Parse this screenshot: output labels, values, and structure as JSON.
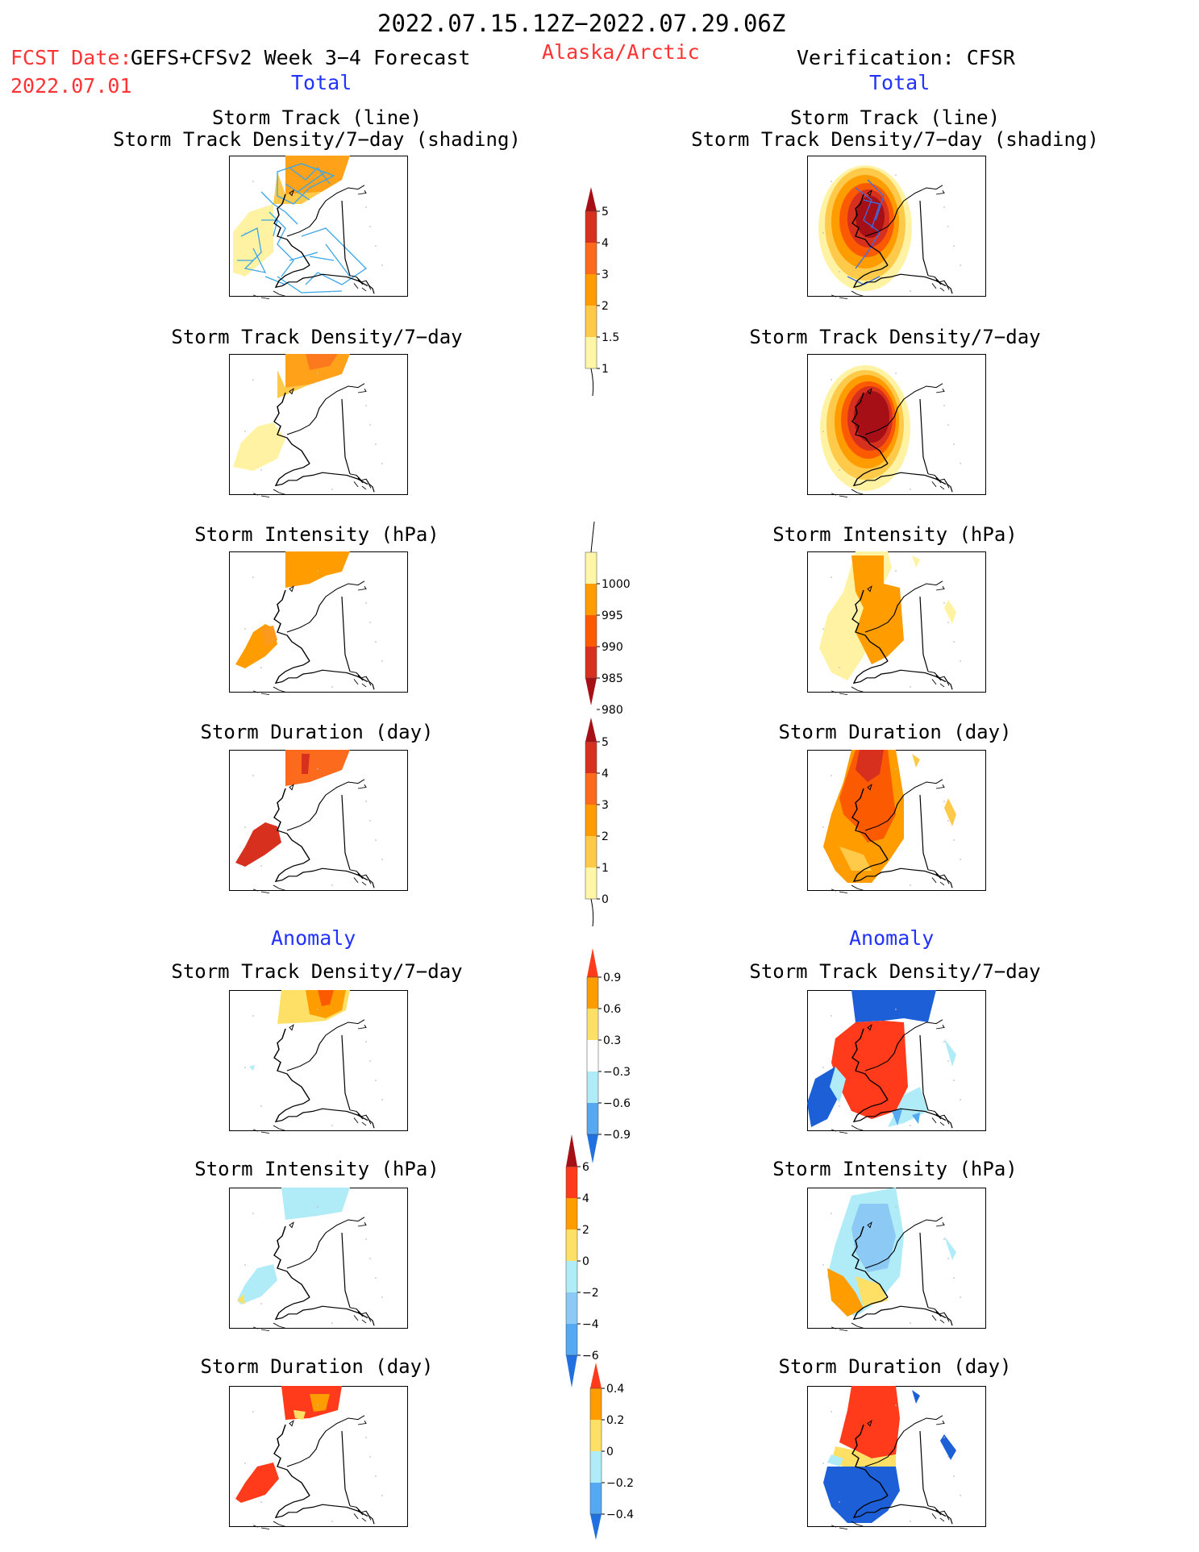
{
  "header": {
    "period": "2022.07.15.12Z−2022.07.29.06Z",
    "fcst_label": "FCST Date:",
    "fcst_model": "GEFS+CFSv2 Week 3−4 Forecast",
    "fcst_date": "2022.07.01",
    "region": "Alaska/Arctic",
    "verification": "Verification: CFSR"
  },
  "sections": {
    "left_total": "Total",
    "right_total": "Total",
    "left_anomaly": "Anomaly",
    "right_anomaly": "Anomaly"
  },
  "panels": {
    "left": {
      "p1_line1": "Storm Track (line)",
      "p1_line2": "Storm Track Density/7−day (shading)",
      "p2": "Storm Track Density/7−day",
      "p3": "Storm Intensity (hPa)",
      "p4": "Storm Duration (day)",
      "p5": "Storm Track Density/7−day",
      "p6": "Storm Intensity (hPa)",
      "p7": "Storm Duration (day)"
    },
    "right": {
      "p1_line1": "Storm Track (line)",
      "p1_line2": "Storm Track Density/7−day (shading)",
      "p2": "Storm Track Density/7−day",
      "p3": "Storm Intensity (hPa)",
      "p4": "Storm Duration (day)",
      "p5": "Storm Track Density/7−day",
      "p6": "Storm Intensity (hPa)",
      "p7": "Storm Duration (day)"
    }
  },
  "colorbars": [
    {
      "name": "density-total",
      "labels": [
        "5",
        "4",
        "3",
        "2",
        "1.5",
        "1"
      ],
      "colors": [
        "#a50f15",
        "#d7301f",
        "#fc6a1d",
        "#ff9c00",
        "#ffc94a",
        "#fff6a8"
      ],
      "caps": "top"
    },
    {
      "name": "intensity-total",
      "labels": [
        "1000",
        "995",
        "990",
        "985",
        "980"
      ],
      "colors": [
        "#fff6a8",
        "#ff9c00",
        "#fc5a00",
        "#d7301f",
        "#a50f15"
      ],
      "caps": "bottom"
    },
    {
      "name": "duration-total",
      "labels": [
        "5",
        "4",
        "3",
        "2",
        "1",
        "0"
      ],
      "colors": [
        "#a50f15",
        "#d7301f",
        "#fc6a1d",
        "#ff9c00",
        "#ffc94a",
        "#fff6a8"
      ],
      "caps": "top"
    },
    {
      "name": "density-anomaly",
      "labels": [
        "0.9",
        "0.6",
        "0.3",
        "−0.3",
        "−0.6",
        "−0.9"
      ],
      "colors": [
        "#ff3b1b",
        "#ff9c00",
        "#ffe066",
        "#ffffff",
        "#b0ecf7",
        "#55a8f2",
        "#2070e0"
      ],
      "caps": "both"
    },
    {
      "name": "intensity-anomaly",
      "labels": [
        "6",
        "4",
        "2",
        "0",
        "−2",
        "−4",
        "−6"
      ],
      "colors": [
        "#a50f15",
        "#ff3b1b",
        "#ff9c00",
        "#ffe066",
        "#b0ecf7",
        "#8ccaf5",
        "#55a8f2",
        "#2070e0"
      ],
      "caps": "both"
    },
    {
      "name": "duration-anomaly",
      "labels": [
        "0.4",
        "0.2",
        "0",
        "−0.2",
        "−0.4"
      ],
      "colors": [
        "#ff3b1b",
        "#ff9c00",
        "#ffe066",
        "#b0ecf7",
        "#55a8f2",
        "#2070e0"
      ],
      "caps": "both"
    }
  ]
}
